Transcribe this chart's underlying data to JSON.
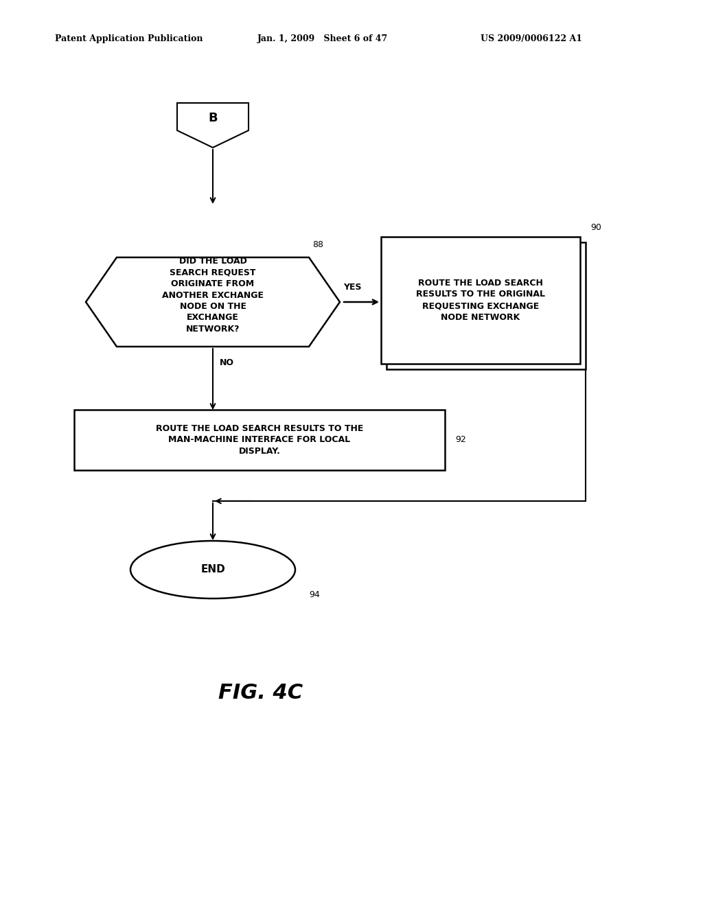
{
  "bg_color": "#ffffff",
  "header_left": "Patent Application Publication",
  "header_mid": "Jan. 1, 2009   Sheet 6 of 47",
  "header_right": "US 2009/0006122 A1",
  "fig_label": "FIG. 4C",
  "connector_label": "B",
  "diamond_text": "DID THE LOAD\nSEARCH REQUEST\nORIGINATE FROM\nANOTHER EXCHANGE\nNODE ON THE\nEXCHANGE\nNETWORK?",
  "diamond_label": "88",
  "box1_text": "ROUTE THE LOAD SEARCH\nRESULTS TO THE ORIGINAL\nREQUESTING EXCHANGE\nNODE NETWORK",
  "box1_label": "90",
  "box2_text": "ROUTE THE LOAD SEARCH RESULTS TO THE\nMAN-MACHINE INTERFACE FOR LOCAL\nDISPLAY.",
  "box2_label": "92",
  "end_text": "END",
  "end_label": "94",
  "yes_label": "YES",
  "no_label": "NO",
  "header_fontsize": 9,
  "body_fontsize": 9,
  "label_fontsize": 9,
  "fig_fontsize": 22
}
